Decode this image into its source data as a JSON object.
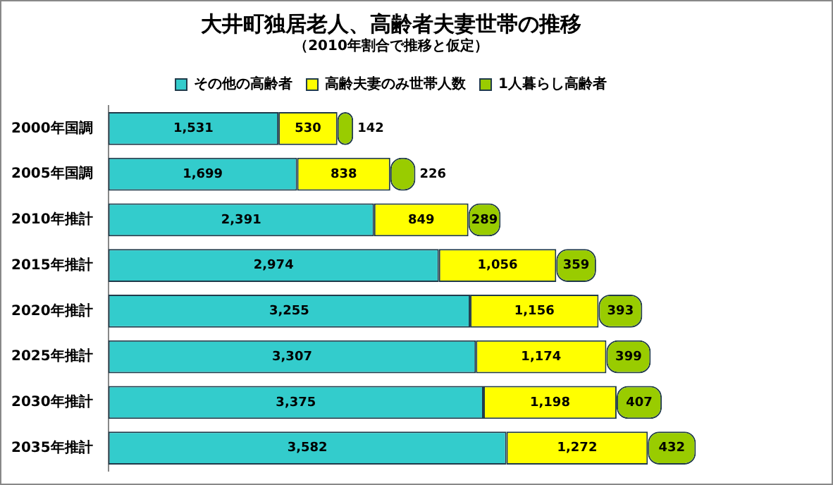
{
  "chart_data": {
    "type": "bar",
    "orientation": "horizontal",
    "stacked": true,
    "title": "大井町独居老人、高齢者夫妻世帯の推移",
    "subtitle": "（2010年割合で推移と仮定）",
    "categories": [
      "2000年国調",
      "2005年国調",
      "2010年推計",
      "2015年推計",
      "2020年推計",
      "2025年推計",
      "2030年推計",
      "2035年推計"
    ],
    "series": [
      {
        "name": "その他の高齢者",
        "color": "#33cccc",
        "values": [
          1531,
          1699,
          2391,
          2974,
          3255,
          3307,
          3375,
          3582
        ],
        "value_labels": [
          "1,531",
          "1,699",
          "2,391",
          "2,974",
          "3,255",
          "3,307",
          "3,375",
          "3,582"
        ]
      },
      {
        "name": "高齢夫妻のみ世帯人数",
        "color": "#ffff00",
        "values": [
          530,
          838,
          849,
          1056,
          1156,
          1174,
          1198,
          1272
        ],
        "value_labels": [
          "530",
          "838",
          "849",
          "1,056",
          "1,156",
          "1,174",
          "1,198",
          "1,272"
        ]
      },
      {
        "name": "1人暮らし高齢者",
        "color": "#99cc00",
        "values": [
          142,
          226,
          289,
          359,
          393,
          399,
          407,
          432
        ],
        "value_labels": [
          "142",
          "226",
          "289",
          "359",
          "393",
          "399",
          "407",
          "432"
        ]
      }
    ],
    "legend": "top",
    "tick_labels": "y",
    "grid": false
  }
}
